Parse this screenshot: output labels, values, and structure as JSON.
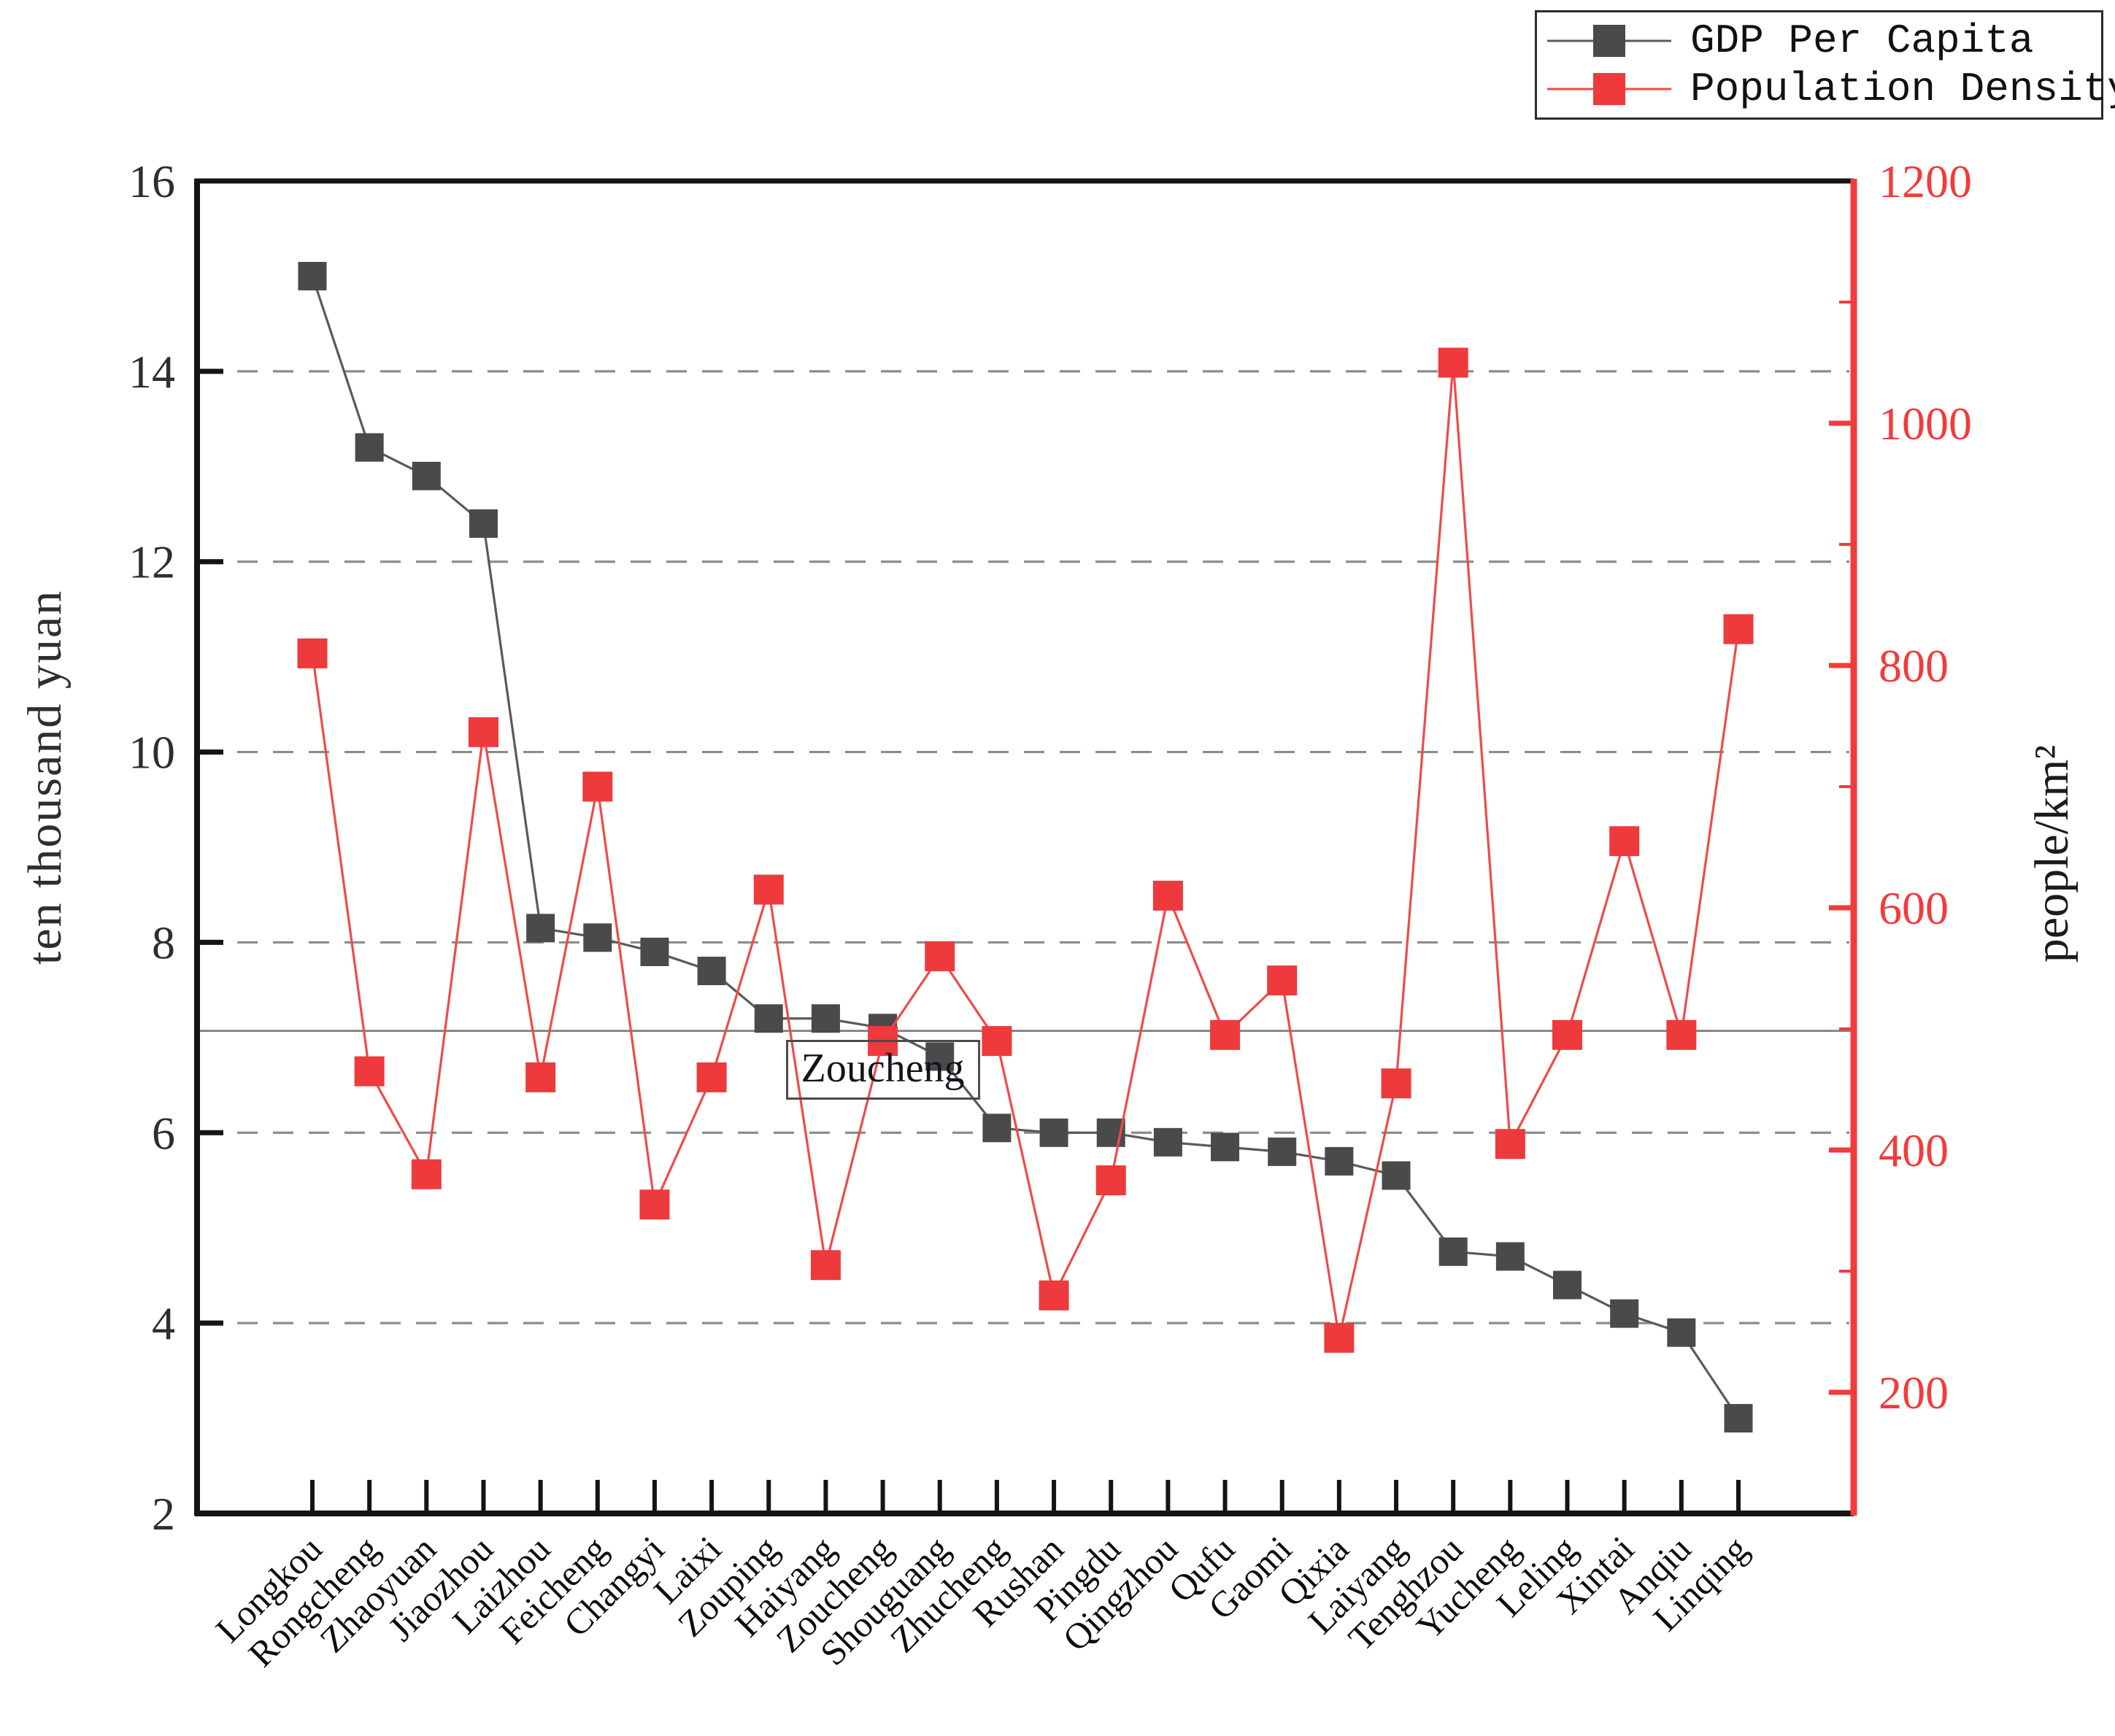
{
  "chart_data": {
    "type": "line",
    "title": "",
    "categories": [
      "Longkou",
      "Rongcheng",
      "Zhaoyuan",
      "Jiaozhou",
      "Laizhou",
      "Feicheng",
      "Changyi",
      "Laixi",
      "Zouping",
      "Haiyang",
      "Zoucheng",
      "Shouguang",
      "Zhucheng",
      "Rushan",
      "Pingdu",
      "Qingzhou",
      "Qufu",
      "Gaomi",
      "Qixia",
      "Laiyang",
      "Tenghzou",
      "Yucheng",
      "Leling",
      "Xintai",
      "Anqiu",
      "Linqing"
    ],
    "series": [
      {
        "name": "GDP Per Capita",
        "axis": "left",
        "color": "#4a4a4a",
        "line_color": "#5a5a5a",
        "values": [
          15.0,
          13.2,
          12.9,
          12.4,
          8.15,
          8.05,
          7.9,
          7.7,
          7.2,
          7.2,
          7.1,
          6.8,
          6.05,
          6.0,
          6.0,
          5.9,
          5.85,
          5.8,
          5.7,
          5.55,
          4.75,
          4.7,
          4.4,
          4.1,
          3.9,
          3.0
        ]
      },
      {
        "name": "Population Density",
        "axis": "right",
        "color": "#ee3a3c",
        "line_color": "#f04a4a",
        "values": [
          810,
          465,
          380,
          745,
          460,
          700,
          355,
          460,
          615,
          305,
          490,
          560,
          490,
          280,
          375,
          610,
          495,
          540,
          245,
          455,
          1050,
          405,
          495,
          655,
          495,
          830
        ]
      }
    ],
    "left_axis": {
      "label": "ten thousand yuan",
      "min": 2,
      "max": 16,
      "ticks": [
        2,
        4,
        6,
        8,
        10,
        12,
        14,
        16
      ],
      "color": "#141414",
      "text_color": "#2e2e2e"
    },
    "right_axis": {
      "label": "people/km²",
      "min": 100,
      "max": 1200,
      "ticks": [
        200,
        400,
        600,
        800,
        1000,
        1200
      ],
      "minor_ticks": [
        300,
        500,
        700,
        900,
        1100
      ],
      "color": "#f23b3b",
      "text_color": "#f23b3b"
    },
    "gridline_values": [
      4,
      6,
      8,
      10,
      12,
      14
    ],
    "grid_on": true,
    "reference_line": {
      "value": 7.07,
      "label": "Zoucheng"
    },
    "legend": {
      "position": "top-right",
      "entries": [
        "GDP Per Capita",
        "Population Density"
      ]
    }
  }
}
